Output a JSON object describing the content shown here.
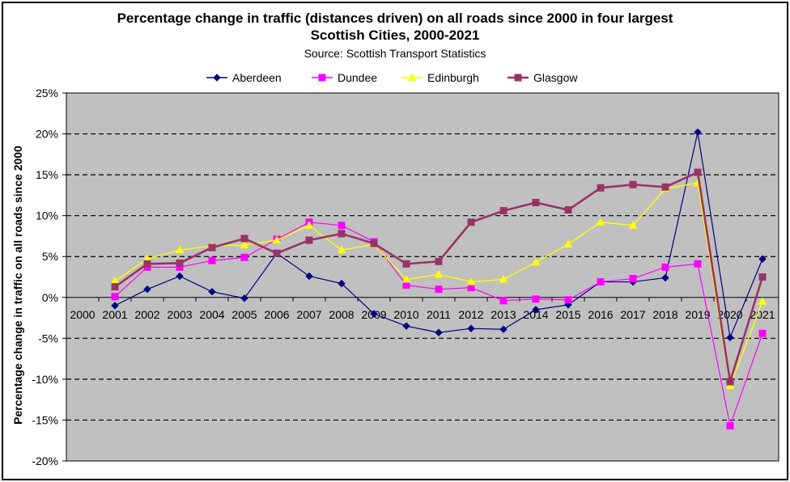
{
  "chart_data": {
    "type": "line",
    "title_line1": "Percentage change in traffic (distances driven) on all roads since 2000 in four largest",
    "title_line2": "Scottish Cities, 2000-2021",
    "subtitle": "Source: Scottish Transport Statistics",
    "xlabel": "",
    "ylabel": "Percentage change in traffic on all roads since 2000",
    "categories": [
      "2000",
      "2001",
      "2002",
      "2003",
      "2004",
      "2005",
      "2006",
      "2007",
      "2008",
      "2009",
      "2010",
      "2011",
      "2012",
      "2013",
      "2014",
      "2015",
      "2016",
      "2017",
      "2018",
      "2019",
      "2020",
      "2021"
    ],
    "ylim": [
      -20,
      25
    ],
    "yticks": [
      -20,
      -15,
      -10,
      -5,
      0,
      5,
      10,
      15,
      20,
      25
    ],
    "ytick_labels": [
      "-20%",
      "-15%",
      "-10%",
      "-5%",
      "0%",
      "5%",
      "10%",
      "15%",
      "20%",
      "25%"
    ],
    "grid": "horizontal dashed",
    "legend_position": "top",
    "plot_background": "#c0c0c0",
    "series": [
      {
        "name": "Aberdeen",
        "color": "#000080",
        "marker": "diamond",
        "values": [
          null,
          -1.0,
          1.0,
          2.6,
          0.7,
          -0.1,
          5.4,
          2.6,
          1.7,
          -2.0,
          -3.5,
          -4.3,
          -3.8,
          -3.9,
          -1.5,
          -0.9,
          1.9,
          1.9,
          2.4,
          20.2,
          -4.9,
          4.7
        ]
      },
      {
        "name": "Dundee",
        "color": "#ff00ff",
        "marker": "square",
        "values": [
          null,
          0.1,
          3.7,
          3.7,
          4.5,
          4.9,
          7.1,
          9.2,
          8.8,
          6.8,
          1.5,
          1.0,
          1.2,
          -0.4,
          -0.2,
          -0.3,
          1.9,
          2.3,
          3.7,
          4.1,
          -15.7,
          -4.4
        ]
      },
      {
        "name": "Edinburgh",
        "color": "#ffff00",
        "marker": "triangle",
        "values": [
          null,
          2.0,
          4.7,
          5.8,
          6.3,
          6.4,
          7.0,
          8.8,
          5.8,
          6.5,
          2.2,
          2.8,
          1.9,
          2.2,
          4.3,
          6.5,
          9.2,
          8.8,
          13.3,
          14.0,
          -10.8,
          -0.5
        ]
      },
      {
        "name": "Glasgow",
        "color": "#993366",
        "marker": "square",
        "values": [
          null,
          1.3,
          4.1,
          4.2,
          6.1,
          7.2,
          5.4,
          7.0,
          7.8,
          6.6,
          4.1,
          4.4,
          9.2,
          10.6,
          11.6,
          10.7,
          13.4,
          13.8,
          13.5,
          15.3,
          -10.3,
          2.5
        ]
      }
    ]
  }
}
